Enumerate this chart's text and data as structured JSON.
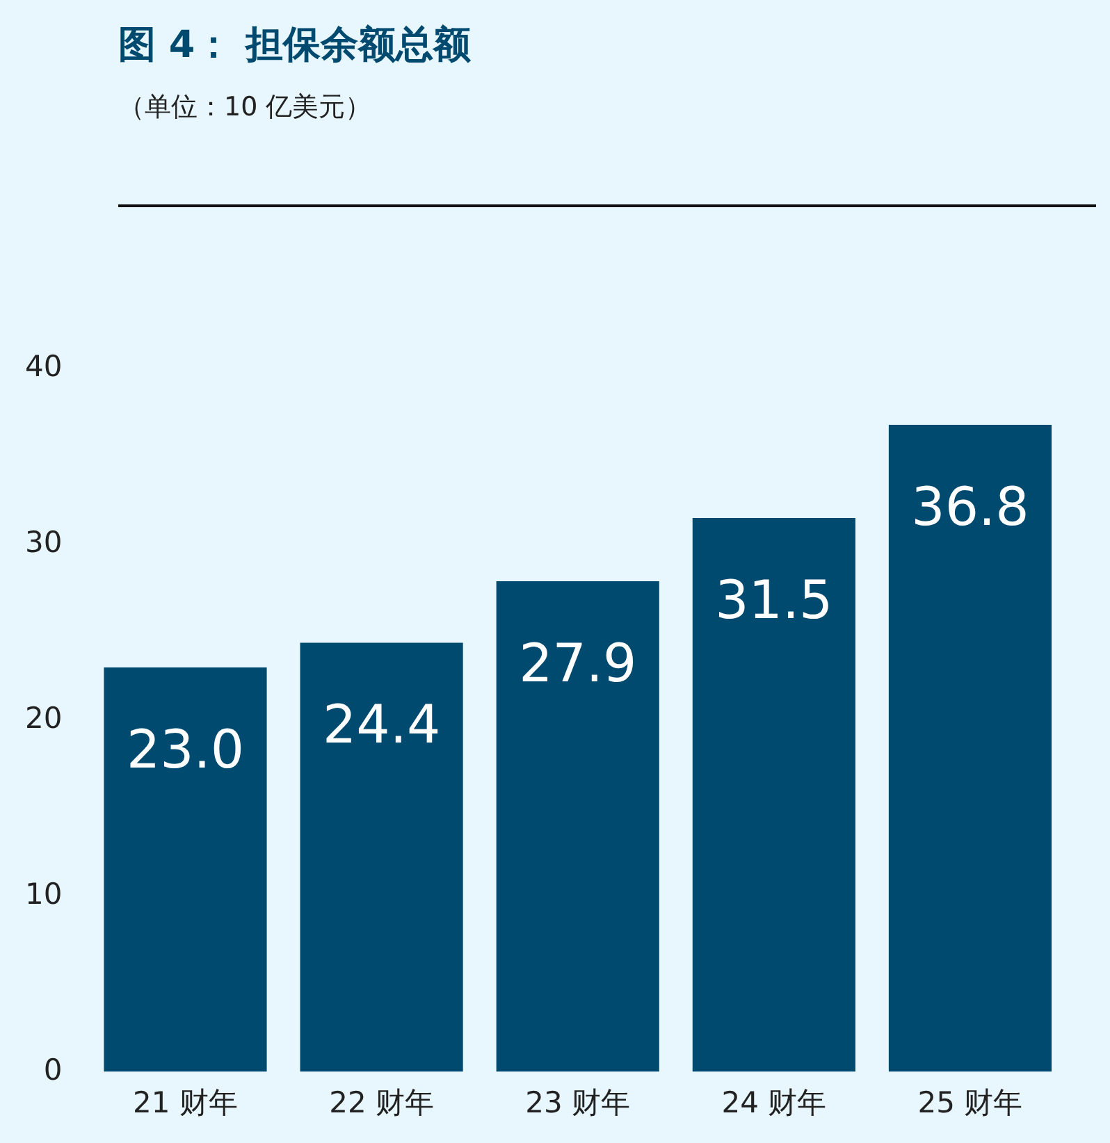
{
  "chart_data": {
    "type": "bar",
    "title": "图 4：  担保余额总额",
    "subtitle": "（单位：10 亿美元）",
    "categories": [
      "21 财年",
      "22 财年",
      "23 财年",
      "24 财年",
      "25 财年"
    ],
    "values": [
      23.0,
      24.4,
      27.9,
      31.5,
      36.8
    ],
    "color": "#004a70",
    "value_labels": [
      "23.0",
      "24.4",
      "27.9",
      "31.5",
      "36.8"
    ],
    "ylim": [
      0,
      40
    ],
    "yticks": [
      0,
      10,
      20,
      30,
      40
    ],
    "grid": false,
    "legend": false
  }
}
